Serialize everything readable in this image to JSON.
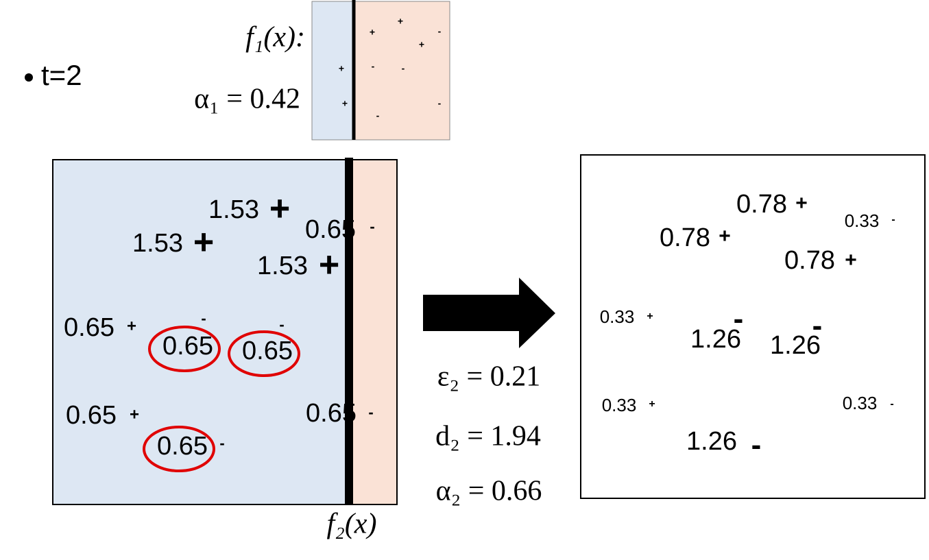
{
  "bullet": "t=2",
  "f1_label": "f₁(x):",
  "alpha1": "α₁ = 0.42",
  "small_panel": {
    "points": [
      {
        "sign": "+"
      },
      {
        "sign": "+"
      },
      {
        "sign": "+"
      },
      {
        "sign": "-"
      },
      {
        "sign": "+"
      },
      {
        "sign": "-"
      },
      {
        "sign": "-"
      },
      {
        "sign": "+"
      },
      {
        "sign": "-"
      },
      {
        "sign": "-"
      }
    ]
  },
  "left_panel": {
    "points": [
      {
        "weight": "1.53",
        "sign": "+"
      },
      {
        "weight": "1.53",
        "sign": "+"
      },
      {
        "weight": "0.65",
        "sign": "-"
      },
      {
        "weight": "1.53",
        "sign": "+"
      },
      {
        "weight": "0.65",
        "sign": "+"
      },
      {
        "weight": "0.65",
        "sign": "-"
      },
      {
        "weight": "0.65",
        "sign": "-"
      },
      {
        "weight": "0.65",
        "sign": "+"
      },
      {
        "weight": "0.65",
        "sign": "-"
      },
      {
        "weight": "0.65",
        "sign": "-"
      }
    ],
    "label": "f₂(x)"
  },
  "equations": [
    "ε₂ = 0.21",
    "d₂ = 1.94",
    "α₂ = 0.66"
  ],
  "right_panel": {
    "points": [
      {
        "weight": "0.78",
        "sign": "+"
      },
      {
        "weight": "0.33",
        "sign": "-"
      },
      {
        "weight": "0.78",
        "sign": "+"
      },
      {
        "weight": "0.78",
        "sign": "+"
      },
      {
        "weight": "0.33",
        "sign": "+"
      },
      {
        "weight": "1.26",
        "sign": "-"
      },
      {
        "weight": "1.26",
        "sign": "-"
      },
      {
        "weight": "0.33",
        "sign": "+"
      },
      {
        "weight": "0.33",
        "sign": "-"
      },
      {
        "weight": "1.26",
        "sign": "-"
      }
    ]
  }
}
